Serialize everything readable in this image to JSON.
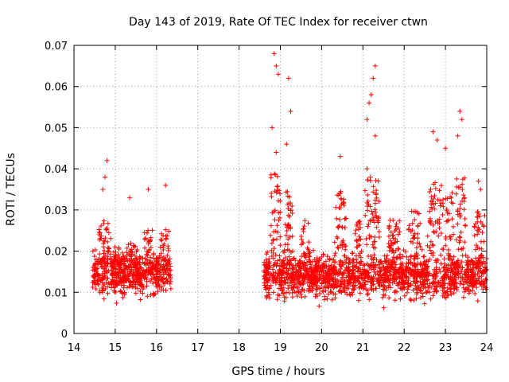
{
  "chart_data": {
    "type": "scatter",
    "title": "Day 143 of 2019, Rate Of TEC Index for receiver ctwn",
    "xlabel": "GPS time / hours",
    "ylabel": "ROTI / TECUs",
    "xlim": [
      14,
      24
    ],
    "ylim": [
      0,
      0.07
    ],
    "x_ticks": [
      "14",
      "15",
      "16",
      "17",
      "18",
      "19",
      "20",
      "21",
      "22",
      "23",
      "24"
    ],
    "y_ticks": [
      "0",
      "0.01",
      "0.02",
      "0.03",
      "0.04",
      "0.05",
      "0.06",
      "0.07"
    ],
    "marker": "+",
    "color": "#ff0000",
    "grid": true,
    "series": [
      {
        "name": "ROTI",
        "segments": [
          {
            "x_start": 14.45,
            "x_end": 16.35,
            "baseline": 0.012,
            "spread": 0.008
          },
          {
            "x_start": 18.6,
            "x_end": 24.0,
            "baseline": 0.011,
            "spread": 0.008
          }
        ],
        "notable_points": [
          {
            "x": 14.8,
            "y": 0.042
          },
          {
            "x": 14.75,
            "y": 0.038
          },
          {
            "x": 14.7,
            "y": 0.035
          },
          {
            "x": 15.35,
            "y": 0.033
          },
          {
            "x": 15.8,
            "y": 0.035
          },
          {
            "x": 16.22,
            "y": 0.036
          },
          {
            "x": 18.85,
            "y": 0.068
          },
          {
            "x": 18.9,
            "y": 0.065
          },
          {
            "x": 18.95,
            "y": 0.063
          },
          {
            "x": 19.2,
            "y": 0.062
          },
          {
            "x": 19.25,
            "y": 0.054
          },
          {
            "x": 18.8,
            "y": 0.05
          },
          {
            "x": 19.15,
            "y": 0.046
          },
          {
            "x": 18.9,
            "y": 0.044
          },
          {
            "x": 21.3,
            "y": 0.065
          },
          {
            "x": 21.25,
            "y": 0.062
          },
          {
            "x": 21.2,
            "y": 0.058
          },
          {
            "x": 21.15,
            "y": 0.056
          },
          {
            "x": 21.1,
            "y": 0.052
          },
          {
            "x": 21.3,
            "y": 0.048
          },
          {
            "x": 21.1,
            "y": 0.04
          },
          {
            "x": 20.45,
            "y": 0.043
          },
          {
            "x": 22.7,
            "y": 0.049
          },
          {
            "x": 22.8,
            "y": 0.047
          },
          {
            "x": 23.0,
            "y": 0.045
          },
          {
            "x": 23.35,
            "y": 0.054
          },
          {
            "x": 23.4,
            "y": 0.052
          },
          {
            "x": 23.3,
            "y": 0.048
          },
          {
            "x": 23.8,
            "y": 0.037
          },
          {
            "x": 23.85,
            "y": 0.035
          }
        ]
      }
    ]
  }
}
